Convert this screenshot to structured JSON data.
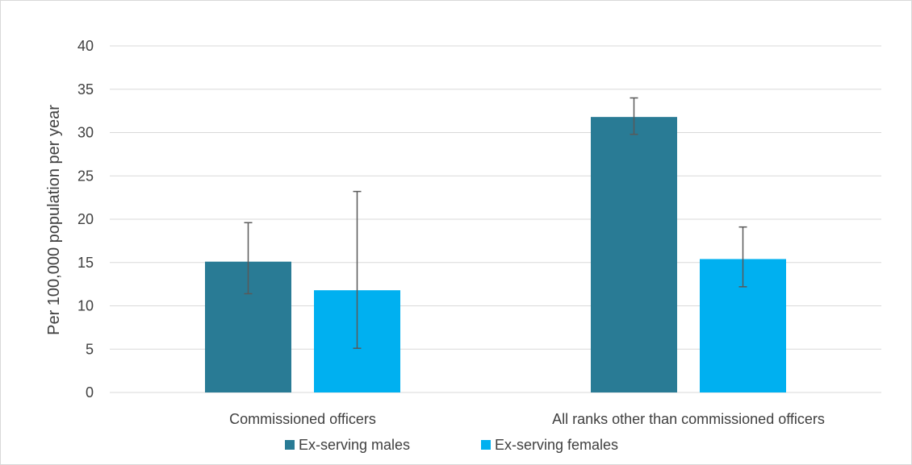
{
  "chart_data": {
    "type": "bar",
    "categories": [
      "Commissioned officers",
      "All ranks other than commissioned officers"
    ],
    "series": [
      {
        "name": "Ex-serving males",
        "color": "#297b95",
        "values": [
          15.1,
          31.8
        ],
        "error_low": [
          11.4,
          29.8
        ],
        "error_high": [
          19.6,
          34.0
        ]
      },
      {
        "name": "Ex-serving females",
        "color": "#00b0f0",
        "values": [
          11.8,
          15.4
        ],
        "error_low": [
          5.1,
          12.2
        ],
        "error_high": [
          23.2,
          19.1
        ]
      }
    ],
    "ylabel": "Per 100,000 population per year",
    "xlabel": "",
    "title": "",
    "ylim": [
      0,
      40
    ],
    "yticks": [
      "0",
      "5",
      "10",
      "15",
      "20",
      "25",
      "30",
      "35",
      "40"
    ],
    "grid": true,
    "legend_position": "bottom"
  }
}
